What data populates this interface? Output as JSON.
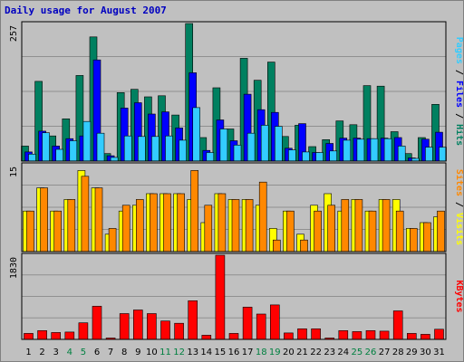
{
  "chart_data": {
    "type": "bar",
    "title": "Daily usage for August 2007",
    "categories": [
      "1",
      "2",
      "3",
      "4",
      "5",
      "6",
      "7",
      "8",
      "9",
      "10",
      "11",
      "12",
      "13",
      "14",
      "15",
      "16",
      "17",
      "18",
      "19",
      "20",
      "21",
      "22",
      "23",
      "24",
      "25",
      "26",
      "27",
      "28",
      "29",
      "30",
      "31"
    ],
    "weekend_days": [
      "4",
      "5",
      "11",
      "12",
      "18",
      "19",
      "25",
      "26"
    ],
    "panels": [
      {
        "id": "hits",
        "max_label": "257",
        "ylim": [
          0,
          257
        ],
        "side_label": [
          {
            "text": "Pages",
            "color": "#33ccff"
          },
          {
            "text": " / ",
            "color": "#000000"
          },
          {
            "text": "Files",
            "color": "#0000ff"
          },
          {
            "text": " / ",
            "color": "#000000"
          },
          {
            "text": "Hits",
            "color": "#008060"
          }
        ],
        "series": [
          {
            "name": "Hits",
            "color": "#008060",
            "values": [
              28,
              149,
              47,
              79,
              160,
              232,
              14,
              128,
              134,
              120,
              122,
              86,
              257,
              44,
              137,
              60,
              192,
              151,
              185,
              46,
              67,
              27,
              40,
              75,
              68,
              141,
              140,
              55,
              14,
              44,
              106
            ]
          },
          {
            "name": "Files",
            "color": "#0000ff",
            "values": [
              17,
              56,
              28,
              42,
              47,
              189,
              10,
              99,
              109,
              88,
              92,
              62,
              165,
              20,
              77,
              38,
              125,
              96,
              91,
              24,
              70,
              16,
              33,
              43,
              43,
              42,
              43,
              44,
              6,
              41,
              54
            ]
          },
          {
            "name": "Pages",
            "color": "#33ccff",
            "values": [
              13,
              53,
              22,
              38,
              74,
              52,
              7,
              47,
              46,
              46,
              47,
              39,
              100,
              16,
              60,
              30,
              52,
              67,
              65,
              21,
              17,
              16,
              19,
              39,
              41,
              42,
              42,
              28,
              5,
              26,
              26
            ]
          }
        ]
      },
      {
        "id": "visits",
        "max_label": "15",
        "ylim": [
          0,
          15
        ],
        "side_label": [
          {
            "text": "Sites",
            "color": "#ff8800"
          },
          {
            "text": " / ",
            "color": "#000000"
          },
          {
            "text": "Visits",
            "color": "#ffff00"
          }
        ],
        "series": [
          {
            "name": "Visits",
            "color": "#ffff00",
            "values": [
              7,
              11,
              7,
              9,
              14,
              11,
              3,
              7,
              8,
              10,
              10,
              10,
              9,
              5,
              10,
              9,
              9,
              8,
              4,
              7,
              3,
              8,
              10,
              7,
              9,
              7,
              9,
              9,
              4,
              5,
              6
            ]
          },
          {
            "name": "Sites",
            "color": "#ff8800",
            "values": [
              7,
              11,
              7,
              9,
              13,
              11,
              4,
              8,
              9,
              10,
              10,
              10,
              14,
              8,
              10,
              9,
              9,
              12,
              2,
              7,
              2,
              7,
              8,
              9,
              9,
              7,
              9,
              7,
              4,
              5,
              7
            ]
          }
        ]
      },
      {
        "id": "kbytes",
        "max_label": "1830",
        "ylim": [
          0,
          1830
        ],
        "side_label": [
          {
            "text": "KBytes",
            "color": "#ff0000"
          }
        ],
        "series": [
          {
            "name": "KBytes",
            "color": "#ff0000",
            "values": [
              130,
              190,
              150,
              160,
              360,
              720,
              30,
              560,
              640,
              560,
              400,
              350,
              840,
              90,
              1830,
              130,
              700,
              550,
              750,
              140,
              230,
              230,
              30,
              190,
              170,
              190,
              180,
              620,
              130,
              110,
              220
            ]
          }
        ]
      }
    ],
    "grid": true
  }
}
